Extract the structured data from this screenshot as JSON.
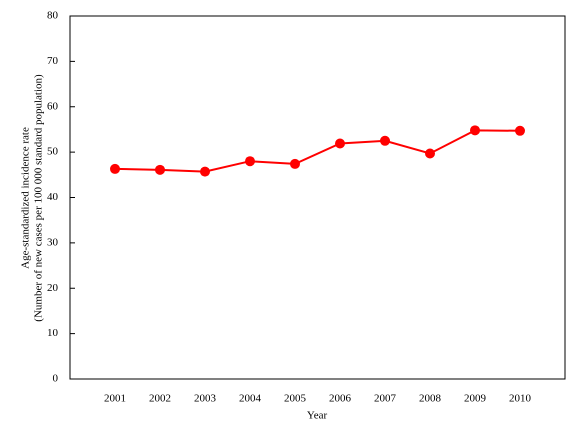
{
  "chart_data": {
    "type": "line",
    "xlabel": "Year",
    "ylabel": [
      "Age-standardized incidence rate",
      "(Number of new cases per 100 000 standard population)"
    ],
    "categories": [
      "2001",
      "2002",
      "2003",
      "2004",
      "2005",
      "2006",
      "2007",
      "2008",
      "2009",
      "2010"
    ],
    "series": [
      {
        "color": "#ff0000",
        "values": [
          46.3,
          46.1,
          45.7,
          48.0,
          47.4,
          51.9,
          52.5,
          49.7,
          54.8,
          54.7
        ]
      }
    ],
    "ylim": [
      0,
      80
    ],
    "yticks": [
      0,
      10,
      20,
      30,
      40,
      50,
      60,
      70,
      80
    ],
    "grid": false
  }
}
